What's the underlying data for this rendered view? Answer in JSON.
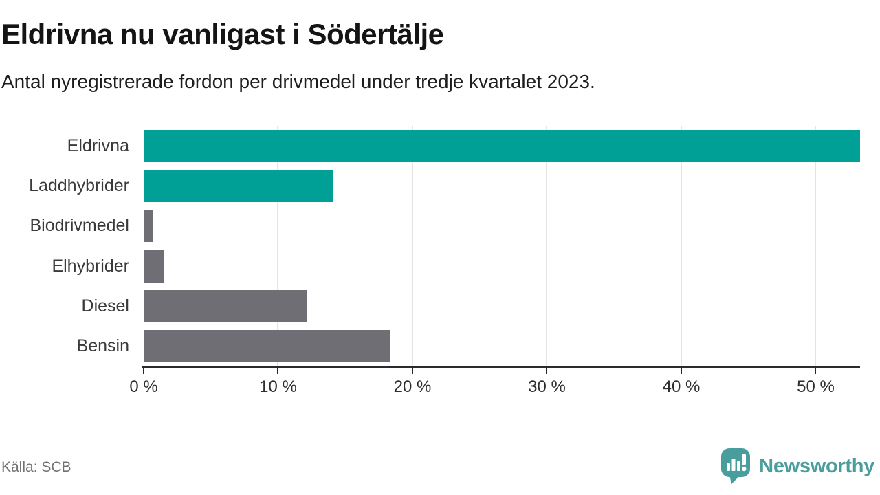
{
  "header": {
    "title": "Eldrivna nu vanligast i Södertälje",
    "subtitle": "Antal nyregistrerade fordon per drivmedel under tredje kvartalet 2023."
  },
  "chart_data": {
    "type": "bar",
    "orientation": "horizontal",
    "title": "Eldrivna nu vanligast i Södertälje",
    "subtitle": "Antal nyregistrerade fordon per drivmedel under tredje kvartalet 2023.",
    "categories": [
      "Eldrivna",
      "Laddhybrider",
      "Biodrivmedel",
      "Elhybrider",
      "Diesel",
      "Bensin"
    ],
    "values": [
      53.3,
      14.1,
      0.7,
      1.5,
      12.1,
      18.3
    ],
    "unit": "%",
    "colors": [
      "#00a096",
      "#00a096",
      "#6f6e74",
      "#6f6e74",
      "#6f6e74",
      "#6f6e74"
    ],
    "xlim": [
      0,
      53.3
    ],
    "tick_values": [
      0,
      10,
      20,
      30,
      40,
      50
    ],
    "tick_labels": [
      "0 %",
      "10 %",
      "20 %",
      "30 %",
      "40 %",
      "50 %"
    ],
    "grid": "vertical",
    "legend": "none"
  },
  "footer": {
    "source": "Källa: SCB",
    "brand": "Newsworthy"
  },
  "colors": {
    "accent_teal": "#00a096",
    "neutral_gray": "#6f6e74",
    "brand_teal": "#4a9d9d",
    "axis": "#2b2b2b",
    "grid": "#e4e4e6"
  }
}
